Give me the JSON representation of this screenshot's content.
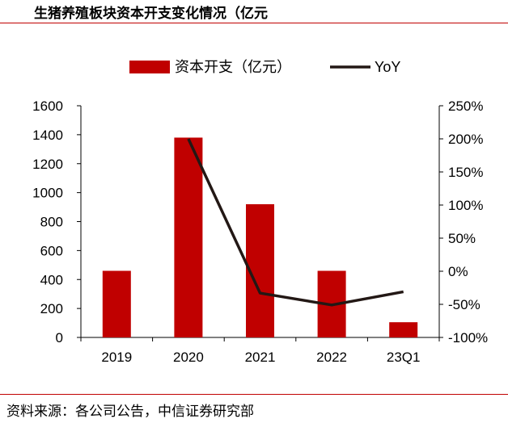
{
  "title": "生猪养殖板块资本开支变化情况（亿元",
  "source": "资料来源：各公司公告，中信证券研究部",
  "colors": {
    "bar": "#c00000",
    "line": "#231815",
    "rule": "#c00000"
  },
  "chart_data": {
    "type": "bar",
    "categories": [
      "2019",
      "2020",
      "2021",
      "2022",
      "23Q1"
    ],
    "series": [
      {
        "name": "资本开支（亿元）",
        "type": "bar",
        "axis": "left",
        "values": [
          460,
          1380,
          920,
          460,
          105
        ]
      },
      {
        "name": "YoY",
        "type": "line",
        "axis": "right",
        "values": [
          null,
          200,
          -33,
          -51,
          -31
        ]
      }
    ],
    "y_left": {
      "min": 0,
      "max": 1600,
      "ticks": [
        "0",
        "200",
        "400",
        "600",
        "800",
        "1000",
        "1200",
        "1400",
        "1600"
      ]
    },
    "y_right": {
      "min": -100,
      "max": 250,
      "ticks": [
        "-100%",
        "-50%",
        "0%",
        "50%",
        "100%",
        "150%",
        "200%",
        "250%"
      ]
    },
    "legend": {
      "position": "top"
    },
    "grid": false
  }
}
